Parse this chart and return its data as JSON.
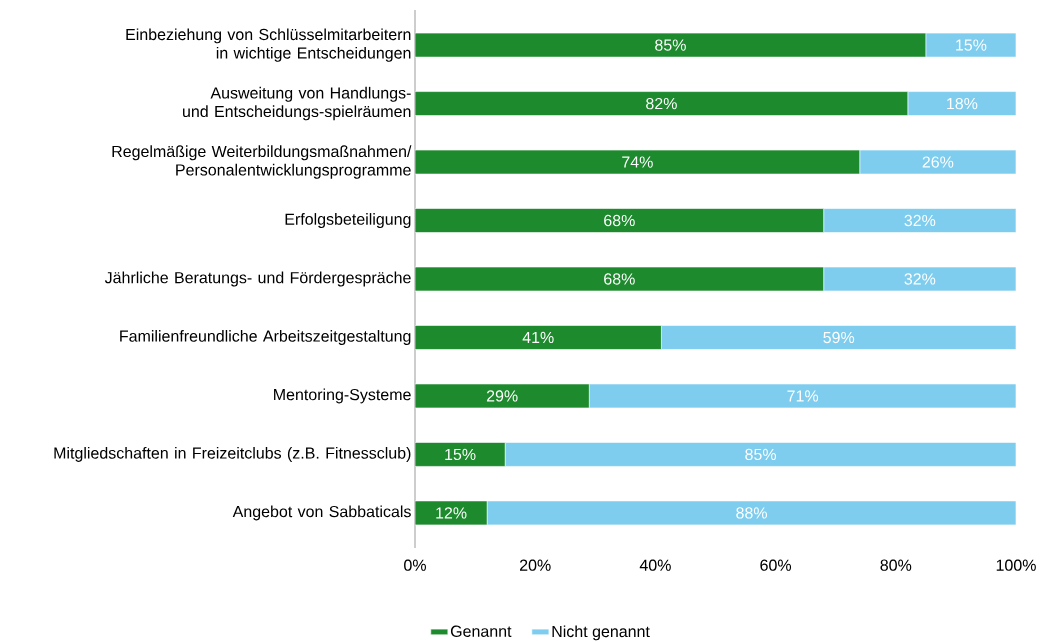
{
  "chart_data": {
    "type": "bar",
    "orientation": "horizontal",
    "stacked": true,
    "categories": [
      "Einbeziehung von Schlüsselmitarbeitern in wichtige Entscheidungen",
      "Ausweitung von Handlungs- und Entscheidungs-spielräumen",
      "Regelmäßige Weiterbildungsmaßnahmen/Personalentwicklungsprogramme",
      "Erfolgsbeteiligung",
      "Jährliche Beratungs- und Fördergespräche",
      "Familienfreundliche Arbeitszeitgestaltung",
      "Mentoring-Systeme",
      "Mitgliedschaften in Freizeitclubs (z.B. Fitnessclub)",
      "Angebot von Sabbaticals"
    ],
    "series": [
      {
        "name": "Genannt",
        "color": "#1e8a2e",
        "values": [
          85,
          82,
          74,
          68,
          68,
          41,
          29,
          15,
          12
        ],
        "value_labels": [
          "85%",
          "82%",
          "74%",
          "68%",
          "68%",
          "41%",
          "29%",
          "15%",
          "12%"
        ]
      },
      {
        "name": "Nicht genannt",
        "color": "#7fcdee",
        "values": [
          15,
          18,
          26,
          32,
          32,
          59,
          71,
          85,
          88
        ],
        "value_labels": [
          "15%",
          "18%",
          "26%",
          "32%",
          "32%",
          "59%",
          "71%",
          "85%",
          "88%"
        ]
      }
    ],
    "xlim": [
      0,
      100
    ],
    "xticks": [
      {
        "value": 0,
        "label": "0%"
      },
      {
        "value": 20,
        "label": "20%"
      },
      {
        "value": 40,
        "label": "40%"
      },
      {
        "value": 60,
        "label": "60%"
      },
      {
        "value": 80,
        "label": "80%"
      },
      {
        "value": 100,
        "label": "100%"
      }
    ],
    "legend": "bottom"
  }
}
